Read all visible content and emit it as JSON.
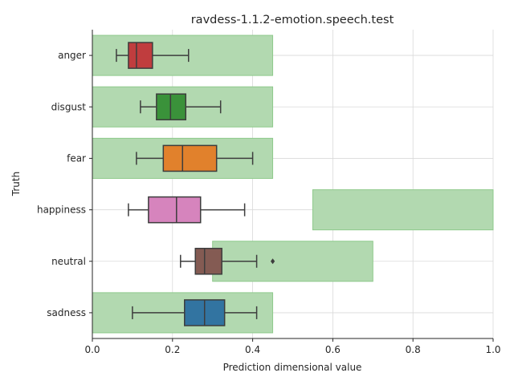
{
  "chart_data": {
    "type": "boxplot",
    "title": "ravdess-1.1.2-emotion.speech.test",
    "xlabel": "Prediction dimensional value",
    "ylabel": "Truth",
    "xlim": [
      0,
      1
    ],
    "xticks": [
      "0.0",
      "0.2",
      "0.4",
      "0.6",
      "0.8",
      "1.0"
    ],
    "grid": true,
    "categories": [
      "anger",
      "disgust",
      "fear",
      "happiness",
      "neutral",
      "sadness"
    ],
    "target_ranges": [
      {
        "category": "anger",
        "min": 0.0,
        "max": 0.45
      },
      {
        "category": "disgust",
        "min": 0.0,
        "max": 0.45
      },
      {
        "category": "fear",
        "min": 0.0,
        "max": 0.45
      },
      {
        "category": "happiness",
        "min": 0.55,
        "max": 1.0
      },
      {
        "category": "neutral",
        "min": 0.3,
        "max": 0.7
      },
      {
        "category": "sadness",
        "min": 0.0,
        "max": 0.45
      }
    ],
    "boxes": [
      {
        "category": "anger",
        "whisker_low": 0.06,
        "q1": 0.09,
        "median": 0.11,
        "q3": 0.15,
        "whisker_high": 0.24,
        "outliers": [],
        "color": "#c03d3e"
      },
      {
        "category": "disgust",
        "whisker_low": 0.12,
        "q1": 0.16,
        "median": 0.195,
        "q3": 0.233,
        "whisker_high": 0.32,
        "outliers": [],
        "color": "#3a923a"
      },
      {
        "category": "fear",
        "whisker_low": 0.11,
        "q1": 0.177,
        "median": 0.225,
        "q3": 0.31,
        "whisker_high": 0.4,
        "outliers": [],
        "color": "#e1812c"
      },
      {
        "category": "happiness",
        "whisker_low": 0.09,
        "q1": 0.14,
        "median": 0.21,
        "q3": 0.27,
        "whisker_high": 0.38,
        "outliers": [],
        "color": "#d684bd"
      },
      {
        "category": "neutral",
        "whisker_low": 0.22,
        "q1": 0.257,
        "median": 0.28,
        "q3": 0.323,
        "whisker_high": 0.41,
        "outliers": [
          0.45
        ],
        "color": "#845b53"
      },
      {
        "category": "sadness",
        "whisker_low": 0.1,
        "q1": 0.23,
        "median": 0.28,
        "q3": 0.33,
        "whisker_high": 0.41,
        "outliers": [],
        "color": "#3274a1"
      }
    ],
    "range_color": "#b2d9b0",
    "range_edge_color": "#8fca8c"
  }
}
